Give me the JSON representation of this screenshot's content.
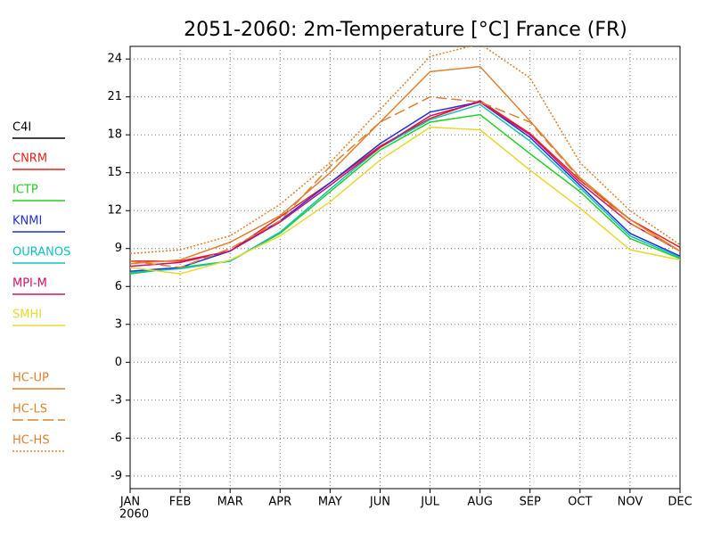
{
  "chart_data": {
    "type": "line",
    "title": "2051-2060: 2m-Temperature [°C] France (FR)",
    "categories": [
      "JAN",
      "FEB",
      "MAR",
      "APR",
      "MAY",
      "JUN",
      "JUL",
      "AUG",
      "SEP",
      "OCT",
      "NOV",
      "DEC"
    ],
    "x_year_label": "2060",
    "ylim": [
      -10,
      25
    ],
    "yticks": [
      -9,
      -6,
      -3,
      0,
      3,
      6,
      9,
      12,
      15,
      18,
      21,
      24
    ],
    "grid": true,
    "series": [
      {
        "name": "C4I",
        "color": "#000000",
        "dash": "solid",
        "values": [
          null,
          null,
          null,
          null,
          null,
          null,
          null,
          null,
          null,
          null,
          null,
          null
        ]
      },
      {
        "name": "CNRM",
        "color": "#e8201c",
        "dash": "solid",
        "values": [
          8.0,
          8.0,
          8.8,
          11.5,
          14.2,
          17.1,
          19.3,
          20.7,
          18.1,
          14.4,
          11.3,
          9.1
        ]
      },
      {
        "name": "ICTP",
        "color": "#20d020",
        "dash": "solid",
        "values": [
          7.0,
          7.5,
          8.0,
          10.2,
          13.5,
          16.8,
          19.0,
          19.6,
          16.5,
          13.5,
          9.8,
          8.2
        ]
      },
      {
        "name": "KNMI",
        "color": "#2030e0",
        "dash": "solid",
        "values": [
          7.2,
          7.5,
          8.8,
          11.2,
          14.2,
          17.3,
          19.8,
          20.6,
          17.8,
          14.0,
          10.2,
          8.4
        ]
      },
      {
        "name": "OURANOS",
        "color": "#10c0c0",
        "dash": "solid",
        "values": [
          7.1,
          7.4,
          8.0,
          10.3,
          13.7,
          17.0,
          19.2,
          20.4,
          17.5,
          13.8,
          10.0,
          8.3
        ]
      },
      {
        "name": "MPI-M",
        "color": "#d0106a",
        "dash": "solid",
        "values": [
          7.6,
          7.9,
          8.8,
          11.1,
          14.0,
          17.0,
          19.5,
          20.6,
          18.0,
          14.2,
          11.0,
          8.8
        ]
      },
      {
        "name": "SMHI",
        "color": "#e8d830",
        "dash": "solid",
        "values": [
          7.5,
          7.0,
          8.1,
          10.0,
          12.7,
          16.0,
          18.6,
          18.4,
          15.2,
          12.2,
          8.9,
          8.1
        ]
      },
      {
        "name": "HC-UP",
        "color": "#e08030",
        "dash": "solid",
        "values": [
          7.8,
          8.1,
          9.5,
          11.6,
          15.0,
          19.0,
          23.0,
          23.4,
          19.1,
          14.6,
          11.3,
          8.8
        ]
      },
      {
        "name": "HC-LS",
        "color": "#e08030",
        "dash": "dashed",
        "values": [
          8.0,
          7.5,
          9.0,
          11.2,
          15.5,
          19.0,
          21.0,
          20.6,
          19.0,
          14.5,
          11.0,
          8.8
        ]
      },
      {
        "name": "HC-HS",
        "color": "#e08030",
        "dash": "dotted",
        "values": [
          8.6,
          8.9,
          10.0,
          12.5,
          15.8,
          20.0,
          24.2,
          25.2,
          22.5,
          15.8,
          12.0,
          9.3
        ]
      }
    ]
  }
}
